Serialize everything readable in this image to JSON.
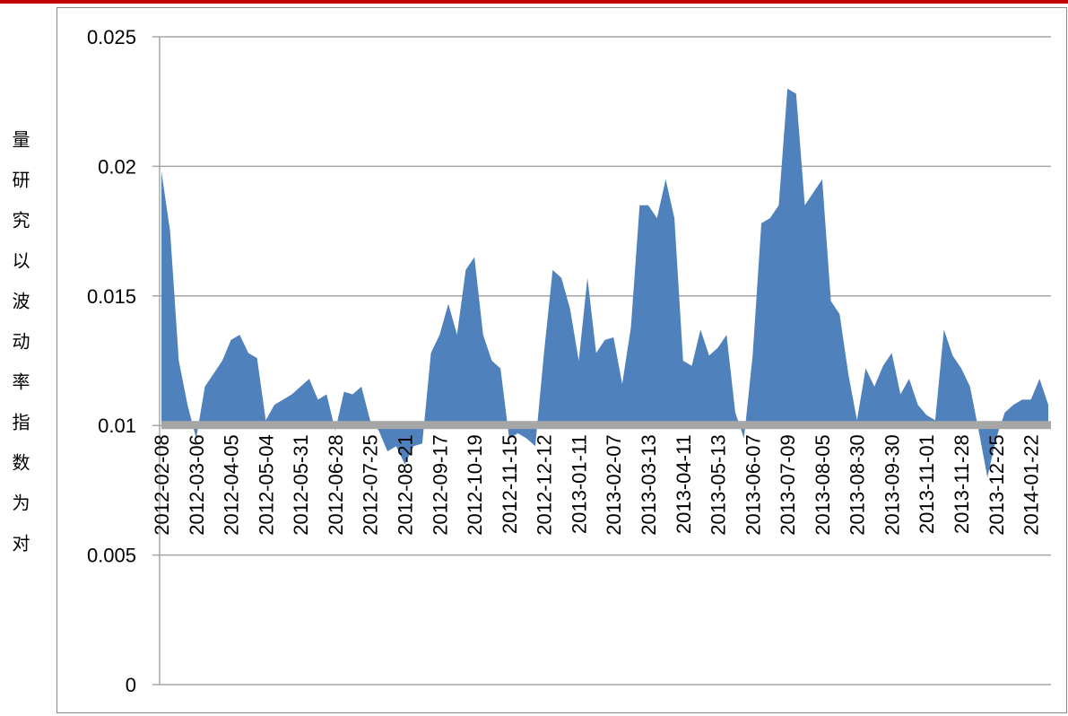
{
  "chart_data": {
    "type": "area",
    "y_label": "量研究以波动率指数为对",
    "categories": [
      "2012-02-08",
      null,
      null,
      null,
      "2012-03-06",
      null,
      null,
      null,
      "2012-04-05",
      null,
      null,
      null,
      "2012-05-04",
      null,
      null,
      null,
      "2012-05-31",
      null,
      null,
      null,
      "2012-06-28",
      null,
      null,
      null,
      "2012-07-25",
      null,
      null,
      null,
      "2012-08-21",
      null,
      null,
      null,
      "2012-09-17",
      null,
      null,
      null,
      "2012-10-19",
      null,
      null,
      null,
      "2012-11-15",
      null,
      null,
      null,
      "2012-12-12",
      null,
      null,
      null,
      "2013-01-11",
      null,
      null,
      null,
      "2013-02-07",
      null,
      null,
      null,
      "2013-03-13",
      null,
      null,
      null,
      "2013-04-11",
      null,
      null,
      null,
      "2013-05-13",
      null,
      null,
      null,
      "2013-06-07",
      null,
      null,
      null,
      "2013-07-09",
      null,
      null,
      null,
      "2013-08-05",
      null,
      null,
      null,
      "2013-08-30",
      null,
      null,
      null,
      "2013-09-30",
      null,
      null,
      null,
      "2013-11-01",
      null,
      null,
      null,
      "2013-11-28",
      null,
      null,
      null,
      "2013-12-25",
      null,
      null,
      null,
      "2014-01-22",
      null,
      null
    ],
    "values": [
      0.0198,
      0.0175,
      0.0125,
      0.0108,
      0.0095,
      0.0115,
      0.012,
      0.0125,
      0.0133,
      0.0135,
      0.0128,
      0.0126,
      0.0102,
      0.0108,
      0.011,
      0.0112,
      0.0115,
      0.0118,
      0.011,
      0.0112,
      0.0098,
      0.0113,
      0.0112,
      0.0115,
      0.0102,
      0.0098,
      0.009,
      0.0092,
      0.0085,
      0.0092,
      0.0093,
      0.0128,
      0.0135,
      0.0147,
      0.0135,
      0.016,
      0.0165,
      0.0135,
      0.0125,
      0.0122,
      0.0095,
      0.0097,
      0.0095,
      0.0092,
      0.0128,
      0.016,
      0.0157,
      0.0145,
      0.0125,
      0.0157,
      0.0128,
      0.0133,
      0.0134,
      0.0116,
      0.0138,
      0.0185,
      0.0185,
      0.018,
      0.0195,
      0.018,
      0.0125,
      0.0123,
      0.0137,
      0.0127,
      0.013,
      0.0135,
      0.0105,
      0.0095,
      0.0127,
      0.0178,
      0.018,
      0.0185,
      0.023,
      0.0228,
      0.0185,
      0.019,
      0.0195,
      0.0148,
      0.0143,
      0.012,
      0.0102,
      0.0122,
      0.0115,
      0.0123,
      0.0128,
      0.0112,
      0.0118,
      0.0108,
      0.0104,
      0.0102,
      0.0137,
      0.0127,
      0.0122,
      0.0115,
      0.0098,
      0.008,
      0.0095,
      0.0105,
      0.0108,
      0.011,
      0.011,
      0.0118,
      0.0108
    ],
    "color": "#4f81bd",
    "ylim": [
      0,
      0.025
    ],
    "yticks": [
      0,
      0.005,
      0.01,
      0.015,
      0.02,
      0.025
    ],
    "xaxis_at": 0.01,
    "grid": true
  }
}
